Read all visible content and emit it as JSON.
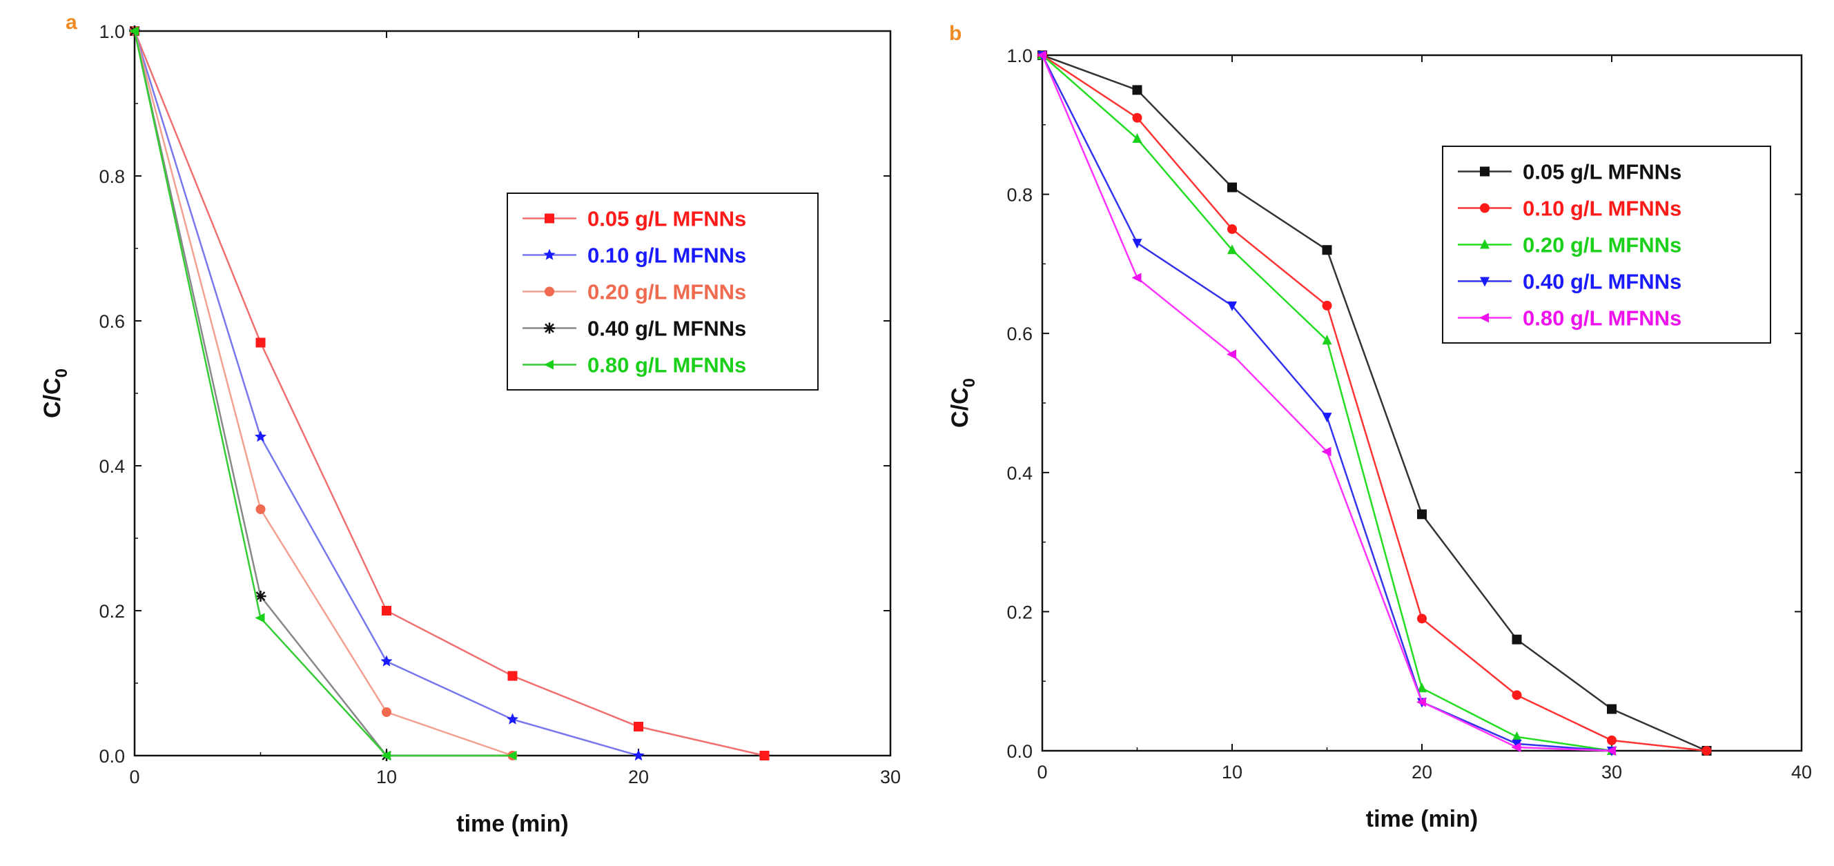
{
  "chart_data": [
    {
      "panel": "a",
      "type": "line",
      "xlabel": "time (min)",
      "ylabel_main": "C/C",
      "ylabel_sub": "0",
      "xlim": [
        0,
        30
      ],
      "ylim": [
        0,
        1.0
      ],
      "xticks": [
        "0",
        "10",
        "20",
        "30"
      ],
      "yticks": [
        "0.0",
        "0.2",
        "0.4",
        "0.6",
        "0.8",
        "1.0"
      ],
      "grid": false,
      "legend_position": "center-right",
      "panel_label_color": "#f08a24",
      "series": [
        {
          "name": "0.05 g/L MFNNs",
          "color": "#ff1a1a",
          "line_color": "#f07070",
          "marker": "square",
          "x": [
            0,
            5,
            10,
            15,
            20,
            25
          ],
          "values": [
            1.0,
            0.57,
            0.2,
            0.11,
            0.04,
            0.0
          ]
        },
        {
          "name": "0.10 g/L MFNNs",
          "color": "#1a1aff",
          "line_color": "#7777ee",
          "marker": "star",
          "x": [
            0,
            5,
            10,
            15,
            20
          ],
          "values": [
            1.0,
            0.44,
            0.13,
            0.05,
            0.0
          ]
        },
        {
          "name": "0.20 g/L MFNNs",
          "color": "#f06a50",
          "line_color": "#f3a090",
          "marker": "circle",
          "x": [
            0,
            5,
            10,
            15
          ],
          "values": [
            1.0,
            0.34,
            0.06,
            0.0
          ]
        },
        {
          "name": "0.40 g/L MFNNs",
          "color": "#111111",
          "line_color": "#888888",
          "marker": "asterisk",
          "x": [
            0,
            5,
            10
          ],
          "values": [
            1.0,
            0.22,
            0.0
          ]
        },
        {
          "name": "0.80 g/L MFNNs",
          "color": "#1ad01a",
          "line_color": "#33cc33",
          "marker": "triangle-left",
          "x": [
            0,
            5,
            10,
            15
          ],
          "values": [
            1.0,
            0.19,
            0.0,
            0.0
          ]
        }
      ]
    },
    {
      "panel": "b",
      "type": "line",
      "xlabel": "time (min)",
      "ylabel_main": "C/C",
      "ylabel_sub": "0",
      "xlim": [
        0,
        40
      ],
      "ylim": [
        0,
        1.0
      ],
      "xticks": [
        "0",
        "10",
        "20",
        "30",
        "40"
      ],
      "yticks": [
        "0.0",
        "0.2",
        "0.4",
        "0.6",
        "0.8",
        "1.0"
      ],
      "grid": false,
      "legend_position": "top-right",
      "panel_label_color": "#f08a24",
      "series": [
        {
          "name": "0.05 g/L MFNNs",
          "color": "#111111",
          "line_color": "#333333",
          "marker": "square",
          "x": [
            0,
            5,
            10,
            15,
            20,
            25,
            30,
            35
          ],
          "values": [
            1.0,
            0.95,
            0.81,
            0.72,
            0.34,
            0.16,
            0.06,
            0.0
          ]
        },
        {
          "name": "0.10 g/L MFNNs",
          "color": "#ff1a1a",
          "line_color": "#ff3333",
          "marker": "circle",
          "x": [
            0,
            5,
            10,
            15,
            20,
            25,
            30,
            35
          ],
          "values": [
            1.0,
            0.91,
            0.75,
            0.64,
            0.19,
            0.08,
            0.015,
            0.0
          ]
        },
        {
          "name": "0.20 g/L MFNNs",
          "color": "#1ad01a",
          "line_color": "#22dd22",
          "marker": "triangle-up",
          "x": [
            0,
            5,
            10,
            15,
            20,
            25,
            30
          ],
          "values": [
            1.0,
            0.88,
            0.72,
            0.59,
            0.09,
            0.02,
            0.0
          ]
        },
        {
          "name": "0.40 g/L MFNNs",
          "color": "#1a1aff",
          "line_color": "#3333ee",
          "marker": "triangle-down",
          "x": [
            0,
            5,
            10,
            15,
            20,
            25,
            30
          ],
          "values": [
            1.0,
            0.73,
            0.64,
            0.48,
            0.07,
            0.01,
            0.0
          ]
        },
        {
          "name": "0.80 g/L MFNNs",
          "color": "#ee11ee",
          "line_color": "#ff33ff",
          "marker": "triangle-left",
          "x": [
            0,
            5,
            10,
            15,
            20,
            25,
            30
          ],
          "values": [
            1.0,
            0.68,
            0.57,
            0.43,
            0.07,
            0.005,
            0.0
          ]
        }
      ]
    }
  ]
}
